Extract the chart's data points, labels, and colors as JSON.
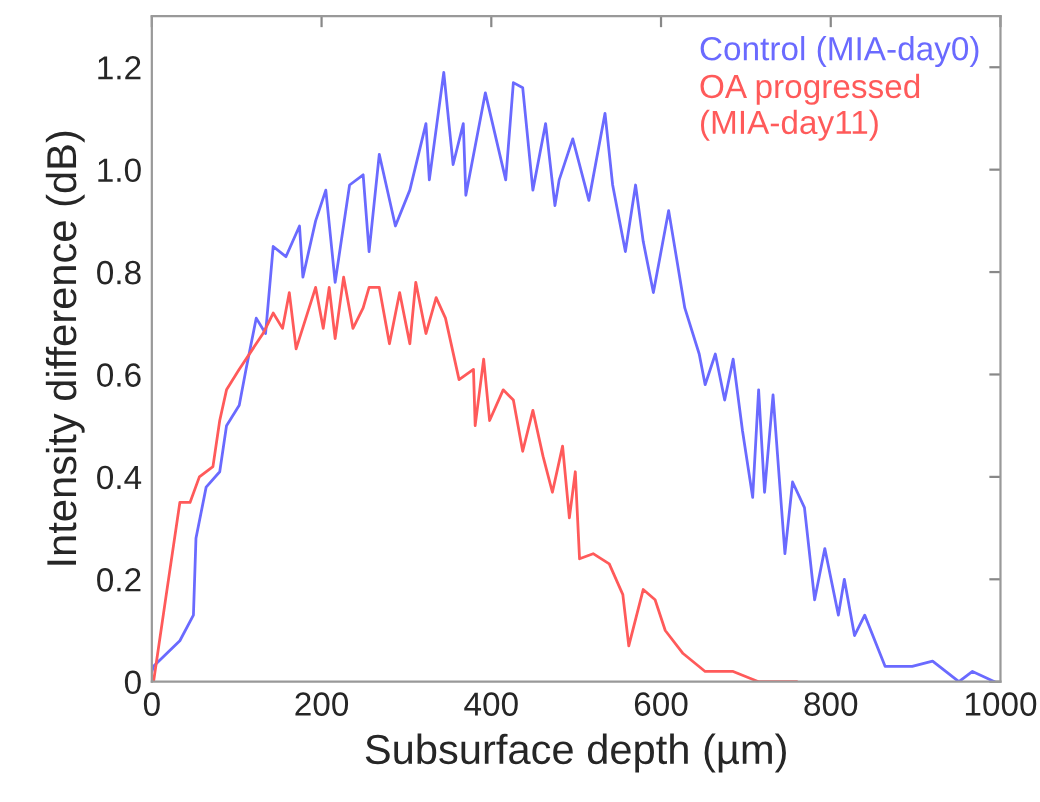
{
  "chart_data": {
    "type": "line",
    "xlabel": "Subsurface depth (µm)",
    "ylabel": "Intensity difference (dB)",
    "xlim": [
      0,
      1000
    ],
    "xticks": [
      0,
      200,
      400,
      600,
      800,
      1000
    ],
    "ylim": [
      0,
      1.3
    ],
    "yticks": [
      0,
      0.2,
      0.4,
      0.6,
      0.8,
      {
        "value": 1.0,
        "label": "1.0"
      },
      1.2
    ],
    "grid": false,
    "legend": "top right",
    "series": [
      {
        "name": "Control (MIA-day0)",
        "color": "#6a6aff",
        "x": [
          0,
          2,
          33,
          49,
          52,
          64,
          80,
          88,
          103,
          111,
          123,
          134,
          143,
          158,
          174,
          178,
          193,
          205,
          216,
          233,
          249,
          256,
          268,
          287,
          304,
          323,
          327,
          344,
          355,
          367,
          370,
          393,
          417,
          426,
          437,
          449,
          464,
          475,
          480,
          496,
          515,
          534,
          543,
          558,
          570,
          579,
          591,
          609,
          628,
          645,
          652,
          664,
          675,
          685,
          696,
          708,
          715,
          722,
          732,
          746,
          755,
          769,
          781,
          793,
          809,
          816,
          828,
          840,
          864,
          896,
          920,
          951,
          967,
          993
        ],
        "values": [
          0.02,
          0.03,
          0.08,
          0.13,
          0.28,
          0.38,
          0.41,
          0.5,
          0.54,
          0.61,
          0.71,
          0.68,
          0.85,
          0.83,
          0.89,
          0.79,
          0.9,
          0.96,
          0.78,
          0.97,
          0.99,
          0.84,
          1.03,
          0.89,
          0.96,
          1.09,
          0.98,
          1.19,
          1.01,
          1.09,
          0.95,
          1.15,
          0.98,
          1.17,
          1.16,
          0.96,
          1.09,
          0.93,
          0.98,
          1.06,
          0.94,
          1.11,
          0.97,
          0.84,
          0.97,
          0.86,
          0.76,
          0.92,
          0.73,
          0.64,
          0.58,
          0.64,
          0.55,
          0.63,
          0.49,
          0.36,
          0.57,
          0.37,
          0.56,
          0.25,
          0.39,
          0.34,
          0.16,
          0.26,
          0.13,
          0.2,
          0.09,
          0.13,
          0.03,
          0.03,
          0.04,
          0.0,
          0.02,
          0.0
        ]
      },
      {
        "name": "OA progressed\n(MIA-day11)",
        "color": "#ff5a5a",
        "x": [
          2,
          17,
          33,
          45,
          56,
          72,
          80,
          88,
          103,
          119,
          131,
          143,
          154,
          162,
          170,
          193,
          202,
          209,
          216,
          226,
          237,
          249,
          256,
          268,
          280,
          292,
          304,
          311,
          323,
          335,
          346,
          362,
          379,
          381,
          391,
          398,
          414,
          426,
          437,
          449,
          461,
          472,
          484,
          492,
          499,
          504,
          520,
          539,
          555,
          562,
          579,
          593,
          605,
          626,
          652,
          685,
          715,
          760
        ],
        "values": [
          0.0,
          0.17,
          0.35,
          0.35,
          0.4,
          0.42,
          0.51,
          0.57,
          0.61,
          0.65,
          0.68,
          0.72,
          0.69,
          0.76,
          0.65,
          0.77,
          0.69,
          0.77,
          0.67,
          0.79,
          0.69,
          0.73,
          0.77,
          0.77,
          0.66,
          0.76,
          0.66,
          0.78,
          0.68,
          0.75,
          0.71,
          0.59,
          0.61,
          0.5,
          0.63,
          0.51,
          0.57,
          0.55,
          0.45,
          0.53,
          0.44,
          0.37,
          0.46,
          0.32,
          0.41,
          0.24,
          0.25,
          0.23,
          0.17,
          0.07,
          0.18,
          0.16,
          0.1,
          0.055,
          0.02,
          0.02,
          0.0,
          0.0
        ]
      }
    ]
  }
}
